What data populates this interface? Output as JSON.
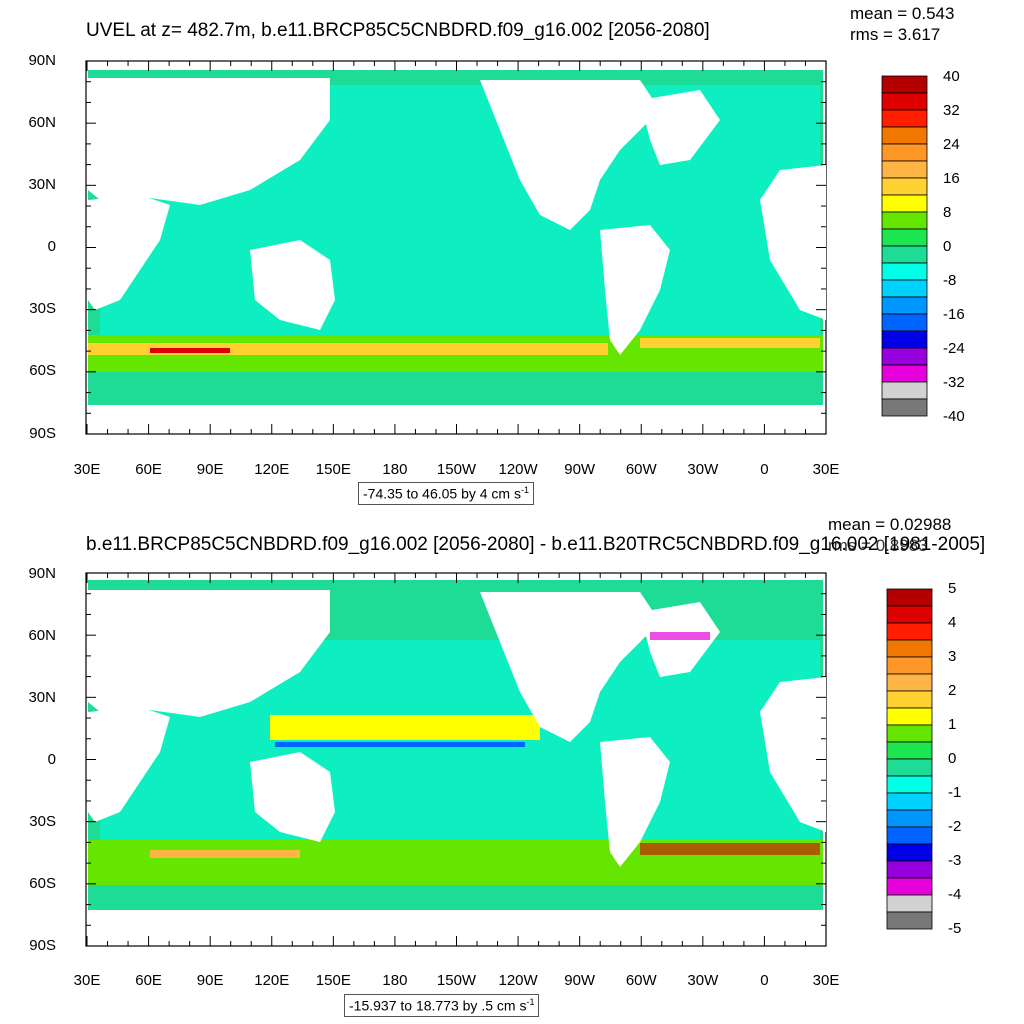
{
  "panels": [
    {
      "title": "UVEL at z= 482.7m, b.e11.BRCP85C5CNBDRD.f09_g16.002 [2056-2080]",
      "mean": "mean = 0.543",
      "rms": "rms = 3.617",
      "info_text": "-74.35 to 46.05 by 4 cm s",
      "info_unit_exp": "-1",
      "colorbar": {
        "labels": [
          "40",
          "32",
          "24",
          "16",
          "8",
          "0",
          "-8",
          "-16",
          "-24",
          "-32",
          "-40"
        ],
        "colors": [
          "#b40000",
          "#dc0000",
          "#ff1e00",
          "#f07800",
          "#ff9628",
          "#ffb446",
          "#ffd232",
          "#ffff00",
          "#64e600",
          "#1ee650",
          "#1edc96",
          "#00ffe6",
          "#00d2ff",
          "#0096ff",
          "#0064ff",
          "#0000e6",
          "#9600dc",
          "#e600dc",
          "#d2d2d2",
          "#787878"
        ]
      }
    },
    {
      "title": "b.e11.BRCP85C5CNBDRD.f09_g16.002 [2056-2080] - b.e11.B20TRC5CNBDRD.f09_g16.002 [1981-2005]",
      "mean": "mean = 0.02988",
      "rms": "rms = 0.8983",
      "info_text": "-15.937 to 18.773 by .5 cm s",
      "info_unit_exp": "-1",
      "colorbar": {
        "labels": [
          "5",
          "4",
          "3",
          "2",
          "1",
          "0",
          "-1",
          "-2",
          "-3",
          "-4",
          "-5"
        ],
        "colors": [
          "#b40000",
          "#dc0000",
          "#ff1e00",
          "#f07800",
          "#ff9628",
          "#ffb446",
          "#ffd232",
          "#ffff00",
          "#64e600",
          "#1ee650",
          "#1edc96",
          "#00ffe6",
          "#00d2ff",
          "#0096ff",
          "#0064ff",
          "#0000e6",
          "#9600dc",
          "#e600dc",
          "#d2d2d2",
          "#787878"
        ]
      }
    }
  ],
  "lat_labels": [
    "90N",
    "60N",
    "30N",
    "0",
    "30S",
    "60S",
    "90S"
  ],
  "lon_labels": [
    "30E",
    "60E",
    "90E",
    "120E",
    "150E",
    "180",
    "150W",
    "120W",
    "90W",
    "60W",
    "30W",
    "0",
    "30E"
  ]
}
